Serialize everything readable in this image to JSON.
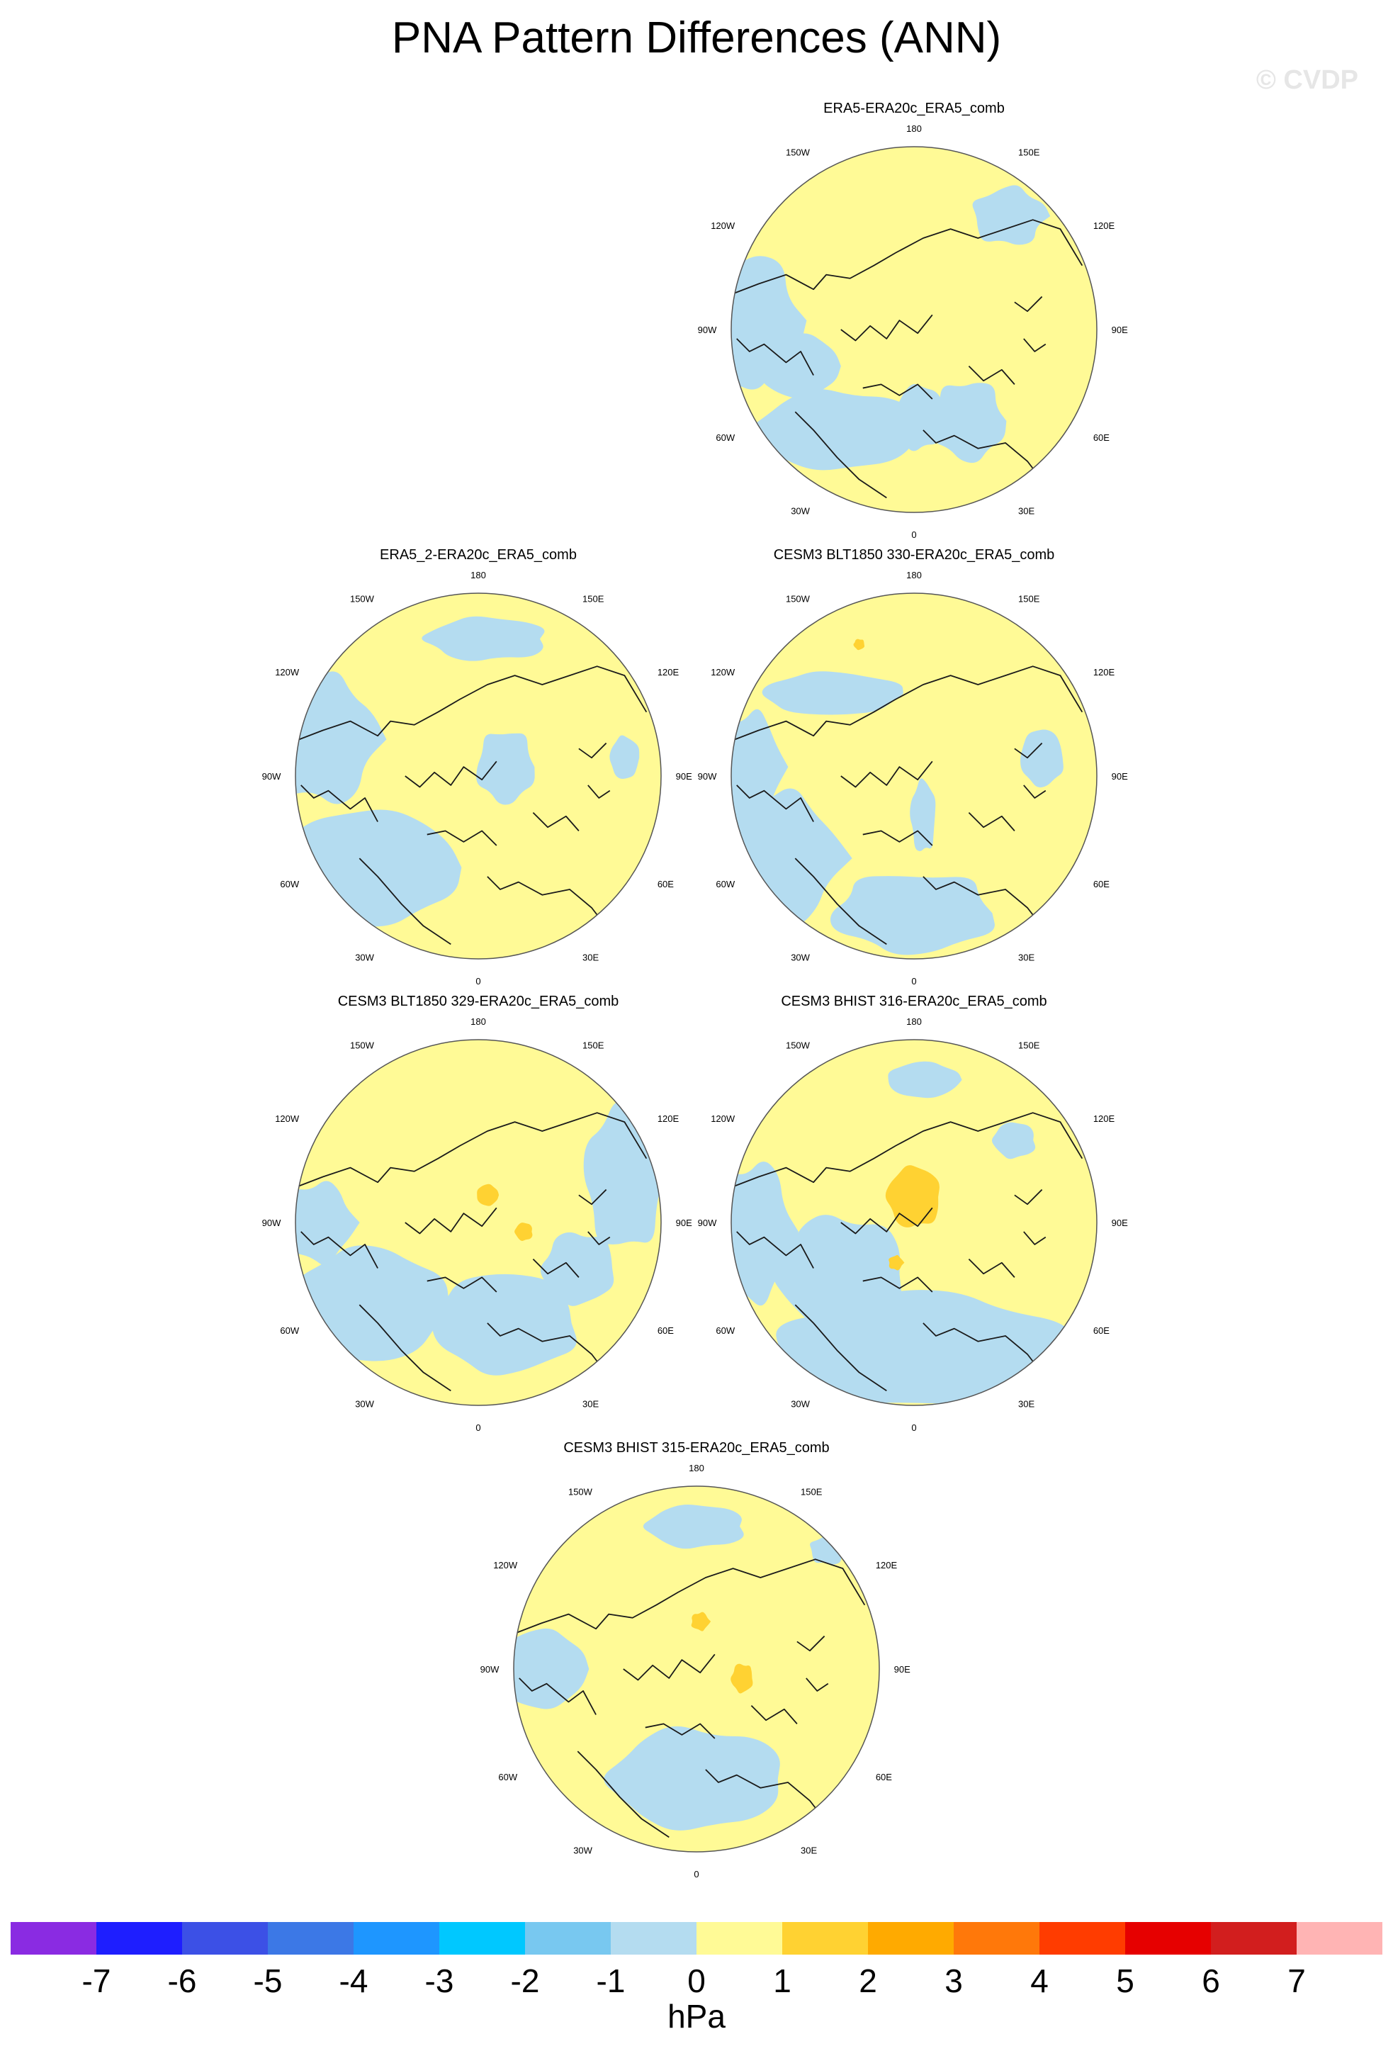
{
  "title": "PNA Pattern Differences (ANN)",
  "watermark": "© CVDP",
  "lon_labels": [
    "180",
    "150E",
    "120E",
    "90E",
    "60E",
    "30E",
    "0",
    "30W",
    "60W",
    "90W",
    "120W",
    "150W"
  ],
  "panels": [
    {
      "title": "ERA5-ERA20c_ERA5_comb",
      "blue": [
        [
          -0.93,
          -0.05,
          0.32,
          0.36
        ],
        [
          -0.42,
          0.55,
          0.45,
          0.22
        ],
        [
          -0.63,
          0.2,
          0.22,
          0.18
        ],
        [
          0.03,
          0.48,
          0.14,
          0.18
        ],
        [
          0.52,
          -0.62,
          0.2,
          0.16
        ],
        [
          0.3,
          0.5,
          0.2,
          0.22
        ]
      ],
      "orange": []
    },
    {
      "title": "ERA5_2-ERA20c_ERA5_comb",
      "blue": [
        [
          -0.6,
          0.5,
          0.5,
          0.32
        ],
        [
          0.05,
          -0.75,
          0.34,
          0.12
        ],
        [
          -0.85,
          -0.2,
          0.3,
          0.35
        ],
        [
          0.15,
          -0.05,
          0.16,
          0.2
        ],
        [
          0.8,
          -0.1,
          0.08,
          0.12
        ]
      ],
      "orange": []
    },
    {
      "title": "CESM3 BLT1850 330-ERA20c_ERA5_comb",
      "blue": [
        [
          -0.75,
          0.45,
          0.35,
          0.36
        ],
        [
          0.0,
          0.75,
          0.45,
          0.22
        ],
        [
          -0.45,
          -0.45,
          0.38,
          0.12
        ],
        [
          0.7,
          -0.1,
          0.12,
          0.16
        ],
        [
          0.05,
          0.22,
          0.07,
          0.2
        ],
        [
          -0.9,
          -0.05,
          0.18,
          0.3
        ]
      ],
      "orange": [
        [
          -0.3,
          -0.72,
          0.03,
          0.03
        ]
      ]
    },
    {
      "title": "CESM3 BLT1850 329-ERA20c_ERA5_comb",
      "blue": [
        [
          -0.6,
          0.45,
          0.42,
          0.32
        ],
        [
          0.15,
          0.55,
          0.4,
          0.28
        ],
        [
          0.8,
          -0.25,
          0.22,
          0.4
        ],
        [
          -0.88,
          0.0,
          0.2,
          0.22
        ],
        [
          0.55,
          0.25,
          0.2,
          0.2
        ]
      ],
      "orange": [
        [
          0.05,
          -0.15,
          0.06,
          0.06
        ],
        [
          0.25,
          0.05,
          0.05,
          0.05
        ]
      ]
    },
    {
      "title": "CESM3 BHIST 316-ERA20c_ERA5_comb",
      "blue": [
        [
          0.05,
          0.7,
          0.8,
          0.32
        ],
        [
          -0.88,
          0.05,
          0.22,
          0.38
        ],
        [
          -0.4,
          0.28,
          0.35,
          0.32
        ],
        [
          0.05,
          -0.78,
          0.2,
          0.1
        ],
        [
          0.55,
          -0.45,
          0.12,
          0.1
        ]
      ],
      "orange": [
        [
          0.0,
          -0.14,
          0.15,
          0.17
        ],
        [
          -0.1,
          0.22,
          0.04,
          0.04
        ]
      ]
    },
    {
      "title": "CESM3 BHIST 315-ERA20c_ERA5_comb",
      "blue": [
        [
          0.0,
          0.6,
          0.48,
          0.28
        ],
        [
          -0.85,
          0.0,
          0.25,
          0.22
        ],
        [
          0.0,
          -0.78,
          0.28,
          0.12
        ],
        [
          0.72,
          -0.65,
          0.1,
          0.08
        ]
      ],
      "orange": [
        [
          0.02,
          -0.26,
          0.05,
          0.05
        ],
        [
          0.25,
          0.05,
          0.06,
          0.08
        ]
      ]
    }
  ],
  "colorbar": {
    "colors": [
      "#8a2be2",
      "#1e1eff",
      "#3c50e6",
      "#3c78e6",
      "#1e96ff",
      "#00c8ff",
      "#78c8f0",
      "#b4dcf0",
      "#fffa96",
      "#ffd232",
      "#ffaa00",
      "#ff780a",
      "#ff3c00",
      "#e60000",
      "#d21e1e",
      "#ffb4b4"
    ],
    "ticks": [
      "-7",
      "-6",
      "-5",
      "-4",
      "-3",
      "-2",
      "-1",
      "0",
      "1",
      "2",
      "3",
      "4",
      "5",
      "6",
      "7"
    ],
    "units": "hPa"
  }
}
